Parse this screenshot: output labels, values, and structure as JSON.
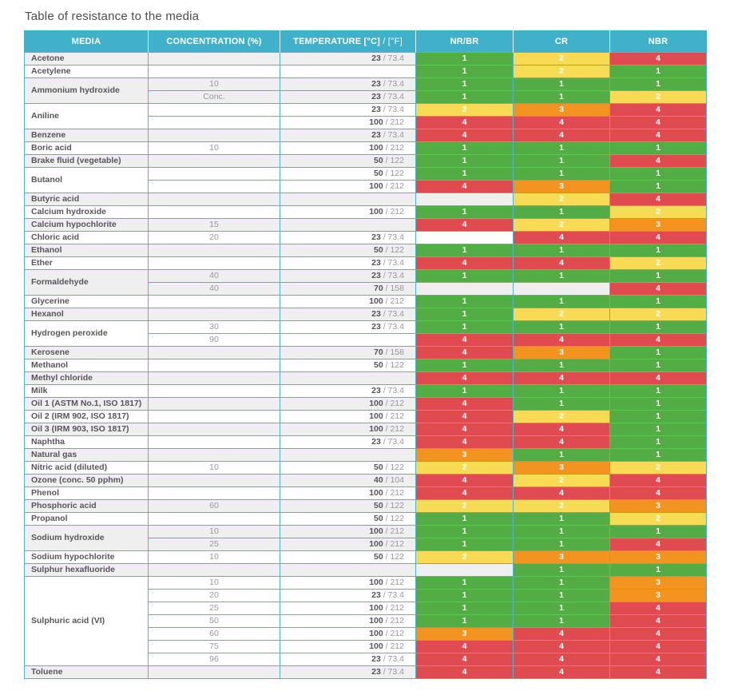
{
  "title": "Table of resistance to the media",
  "header": {
    "media": "MEDIA",
    "concentration": "CONCENTRATION (%)",
    "temperature_main": "TEMPERATURE [°C]",
    "temperature_sub": "/ [°F]",
    "nr_br": "NR/BR",
    "cr": "CR",
    "nbr": "NBR"
  },
  "temperature_separator": " / ",
  "rating_colors": {
    "1": "#54ad44",
    "2": "#f8db55",
    "3": "#f39421",
    "4": "#e04b52"
  },
  "accent_colors": {
    "header_teal": "#3fb2c9",
    "border_teal": "#4db6cd",
    "zebra_gray": "#efefef"
  },
  "rating_columns": [
    "nrbr",
    "cr",
    "nbr"
  ],
  "groups": [
    {
      "media": "Acetone",
      "rows": [
        {
          "concentration": "",
          "temp_c": "23",
          "temp_f": "73.4",
          "ratings": [
            1,
            2,
            4
          ]
        }
      ]
    },
    {
      "media": "Acetylene",
      "rows": [
        {
          "concentration": "",
          "temp_c": "",
          "temp_f": "",
          "ratings": [
            1,
            2,
            1
          ]
        }
      ]
    },
    {
      "media": "Ammonium hydroxide",
      "rows": [
        {
          "concentration": "10",
          "temp_c": "23",
          "temp_f": "73.4",
          "ratings": [
            1,
            1,
            1
          ]
        },
        {
          "concentration": "Conc.",
          "temp_c": "23",
          "temp_f": "73.4",
          "ratings": [
            1,
            1,
            2
          ]
        }
      ]
    },
    {
      "media": "Aniline",
      "rows": [
        {
          "concentration": "",
          "temp_c": "23",
          "temp_f": "73.4",
          "ratings": [
            2,
            3,
            4
          ]
        },
        {
          "concentration": "",
          "temp_c": "100",
          "temp_f": "212",
          "ratings": [
            4,
            4,
            4
          ]
        }
      ]
    },
    {
      "media": "Benzene",
      "rows": [
        {
          "concentration": "",
          "temp_c": "23",
          "temp_f": "73.4",
          "ratings": [
            4,
            4,
            4
          ]
        }
      ]
    },
    {
      "media": "Boric acid",
      "rows": [
        {
          "concentration": "10",
          "temp_c": "100",
          "temp_f": "212",
          "ratings": [
            1,
            1,
            1
          ]
        }
      ]
    },
    {
      "media": "Brake fluid (vegetable)",
      "rows": [
        {
          "concentration": "",
          "temp_c": "50",
          "temp_f": "122",
          "ratings": [
            1,
            1,
            4
          ]
        }
      ]
    },
    {
      "media": "Butanol",
      "rows": [
        {
          "concentration": "",
          "temp_c": "50",
          "temp_f": "122",
          "ratings": [
            1,
            1,
            1
          ]
        },
        {
          "concentration": "",
          "temp_c": "100",
          "temp_f": "212",
          "ratings": [
            4,
            3,
            1
          ]
        }
      ]
    },
    {
      "media": "Butyric acid",
      "rows": [
        {
          "concentration": "",
          "temp_c": "",
          "temp_f": "",
          "ratings": [
            null,
            2,
            4
          ]
        }
      ]
    },
    {
      "media": "Calcium hydroxide",
      "rows": [
        {
          "concentration": "",
          "temp_c": "100",
          "temp_f": "212",
          "ratings": [
            1,
            1,
            2
          ]
        }
      ]
    },
    {
      "media": "Calcium hypochlorite",
      "rows": [
        {
          "concentration": "15",
          "temp_c": "",
          "temp_f": "",
          "ratings": [
            4,
            2,
            3
          ]
        }
      ]
    },
    {
      "media": "Chloric acid",
      "rows": [
        {
          "concentration": "20",
          "temp_c": "23",
          "temp_f": "73.4",
          "ratings": [
            null,
            4,
            4
          ]
        }
      ]
    },
    {
      "media": "Ethanol",
      "rows": [
        {
          "concentration": "",
          "temp_c": "50",
          "temp_f": "122",
          "ratings": [
            1,
            1,
            1
          ]
        }
      ]
    },
    {
      "media": "Ether",
      "rows": [
        {
          "concentration": "",
          "temp_c": "23",
          "temp_f": "73.4",
          "ratings": [
            4,
            4,
            2
          ]
        }
      ]
    },
    {
      "media": "Formaldehyde",
      "rows": [
        {
          "concentration": "40",
          "temp_c": "23",
          "temp_f": "73.4",
          "ratings": [
            1,
            1,
            1
          ]
        },
        {
          "concentration": "40",
          "temp_c": "70",
          "temp_f": "158",
          "ratings": [
            null,
            null,
            4
          ]
        }
      ]
    },
    {
      "media": "Glycerine",
      "rows": [
        {
          "concentration": "",
          "temp_c": "100",
          "temp_f": "212",
          "ratings": [
            1,
            1,
            1
          ]
        }
      ]
    },
    {
      "media": "Hexanol",
      "rows": [
        {
          "concentration": "",
          "temp_c": "23",
          "temp_f": "73.4",
          "ratings": [
            1,
            2,
            2
          ]
        }
      ]
    },
    {
      "media": "Hydrogen peroxide",
      "rows": [
        {
          "concentration": "30",
          "temp_c": "23",
          "temp_f": "73.4",
          "ratings": [
            1,
            1,
            1
          ]
        },
        {
          "concentration": "90",
          "temp_c": "",
          "temp_f": "",
          "ratings": [
            4,
            4,
            4
          ]
        }
      ]
    },
    {
      "media": "Kerosene",
      "rows": [
        {
          "concentration": "",
          "temp_c": "70",
          "temp_f": "158",
          "ratings": [
            4,
            3,
            1
          ]
        }
      ]
    },
    {
      "media": "Methanol",
      "rows": [
        {
          "concentration": "",
          "temp_c": "50",
          "temp_f": "122",
          "ratings": [
            1,
            1,
            1
          ]
        }
      ]
    },
    {
      "media": "Methyl chloride",
      "rows": [
        {
          "concentration": "",
          "temp_c": "",
          "temp_f": "",
          "ratings": [
            4,
            4,
            4
          ]
        }
      ]
    },
    {
      "media": "Milk",
      "rows": [
        {
          "concentration": "",
          "temp_c": "23",
          "temp_f": "73.4",
          "ratings": [
            1,
            1,
            1
          ]
        }
      ]
    },
    {
      "media": "Oil 1 (ASTM No.1, ISO 1817)",
      "rows": [
        {
          "concentration": "",
          "temp_c": "100",
          "temp_f": "212",
          "ratings": [
            4,
            1,
            1
          ]
        }
      ]
    },
    {
      "media": "Oil 2 (IRM 902, ISO 1817)",
      "rows": [
        {
          "concentration": "",
          "temp_c": "100",
          "temp_f": "212",
          "ratings": [
            4,
            2,
            1
          ]
        }
      ]
    },
    {
      "media": "Oil 3 (IRM 903, ISO 1817)",
      "rows": [
        {
          "concentration": "",
          "temp_c": "100",
          "temp_f": "212",
          "ratings": [
            4,
            4,
            1
          ]
        }
      ]
    },
    {
      "media": "Naphtha",
      "rows": [
        {
          "concentration": "",
          "temp_c": "23",
          "temp_f": "73.4",
          "ratings": [
            4,
            4,
            1
          ]
        }
      ]
    },
    {
      "media": "Natural gas",
      "rows": [
        {
          "concentration": "",
          "temp_c": "",
          "temp_f": "",
          "ratings": [
            3,
            1,
            1
          ]
        }
      ]
    },
    {
      "media": "Nitric acid (diluted)",
      "rows": [
        {
          "concentration": "10",
          "temp_c": "50",
          "temp_f": "122",
          "ratings": [
            2,
            3,
            2
          ]
        }
      ]
    },
    {
      "media": "Ozone (conc. 50 pphm)",
      "rows": [
        {
          "concentration": "",
          "temp_c": "40",
          "temp_f": "104",
          "ratings": [
            4,
            2,
            4
          ]
        }
      ]
    },
    {
      "media": "Phenol",
      "rows": [
        {
          "concentration": "",
          "temp_c": "100",
          "temp_f": "212",
          "ratings": [
            4,
            4,
            4
          ]
        }
      ]
    },
    {
      "media": "Phosphoric acid",
      "rows": [
        {
          "concentration": "60",
          "temp_c": "50",
          "temp_f": "122",
          "ratings": [
            2,
            2,
            3
          ]
        }
      ]
    },
    {
      "media": "Propanol",
      "rows": [
        {
          "concentration": "",
          "temp_c": "50",
          "temp_f": "122",
          "ratings": [
            1,
            1,
            2
          ]
        }
      ]
    },
    {
      "media": "Sodium hydroxide",
      "rows": [
        {
          "concentration": "10",
          "temp_c": "100",
          "temp_f": "212",
          "ratings": [
            1,
            1,
            1
          ]
        },
        {
          "concentration": "25",
          "temp_c": "100",
          "temp_f": "212",
          "ratings": [
            1,
            1,
            4
          ]
        }
      ]
    },
    {
      "media": "Sodium hypochlorite",
      "rows": [
        {
          "concentration": "10",
          "temp_c": "50",
          "temp_f": "122",
          "ratings": [
            2,
            3,
            3
          ]
        }
      ]
    },
    {
      "media": "Sulphur hexafluoride",
      "rows": [
        {
          "concentration": "",
          "temp_c": "",
          "temp_f": "",
          "ratings": [
            null,
            1,
            1
          ]
        }
      ]
    },
    {
      "media": "Sulphuric acid (VI)",
      "rows": [
        {
          "concentration": "10",
          "temp_c": "100",
          "temp_f": "212",
          "ratings": [
            1,
            1,
            3
          ]
        },
        {
          "concentration": "20",
          "temp_c": "23",
          "temp_f": "73.4",
          "ratings": [
            1,
            1,
            3
          ]
        },
        {
          "concentration": "25",
          "temp_c": "100",
          "temp_f": "212",
          "ratings": [
            1,
            1,
            4
          ]
        },
        {
          "concentration": "50",
          "temp_c": "100",
          "temp_f": "212",
          "ratings": [
            1,
            1,
            4
          ]
        },
        {
          "concentration": "60",
          "temp_c": "100",
          "temp_f": "212",
          "ratings": [
            3,
            4,
            4
          ]
        },
        {
          "concentration": "75",
          "temp_c": "100",
          "temp_f": "212",
          "ratings": [
            4,
            4,
            4
          ]
        },
        {
          "concentration": "96",
          "temp_c": "23",
          "temp_f": "73.4",
          "ratings": [
            4,
            4,
            4
          ]
        }
      ]
    },
    {
      "media": "Toluene",
      "rows": [
        {
          "concentration": "",
          "temp_c": "23",
          "temp_f": "73.4",
          "ratings": [
            4,
            4,
            4
          ]
        }
      ]
    }
  ]
}
